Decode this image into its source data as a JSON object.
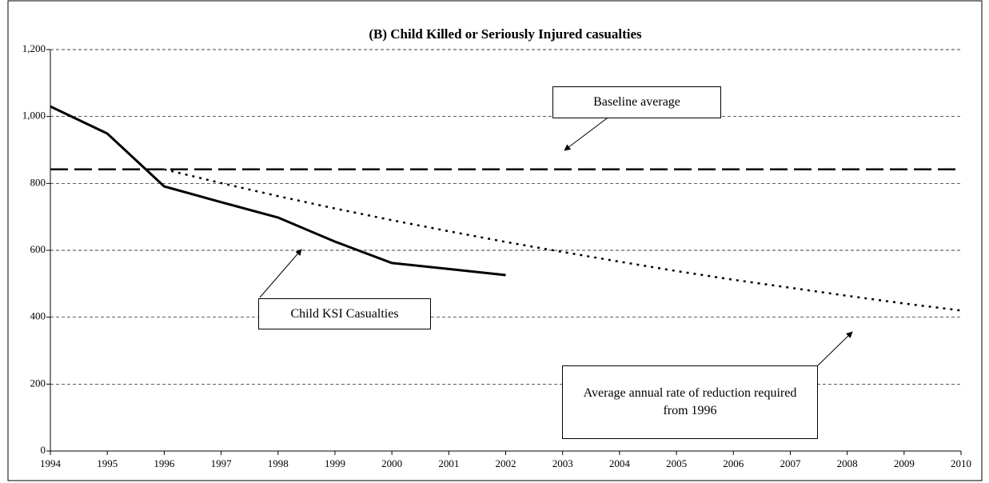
{
  "chart_data": {
    "type": "line",
    "title": "(B) Child Killed or Seriously Injured casualties",
    "x": [
      1994,
      1995,
      1996,
      1997,
      1998,
      1999,
      2000,
      2001,
      2002,
      2003,
      2004,
      2005,
      2006,
      2007,
      2008,
      2009,
      2010
    ],
    "xlim": [
      1994,
      2010
    ],
    "xticks": [
      1994,
      1995,
      1996,
      1997,
      1998,
      1999,
      2000,
      2001,
      2002,
      2003,
      2004,
      2005,
      2006,
      2007,
      2008,
      2009,
      2010
    ],
    "ylim": [
      0,
      1200
    ],
    "yticks": [
      0,
      200,
      400,
      600,
      800,
      {
        "value": 1000,
        "label": "1,000"
      },
      {
        "value": 1200,
        "label": "1,200"
      }
    ],
    "grid": true,
    "series": [
      {
        "name": "Child KSI Casualties",
        "color": "#000000",
        "style": "solid",
        "values": [
          1030,
          949,
          791,
          744,
          698,
          626,
          562,
          544,
          526,
          null,
          null,
          null,
          null,
          null,
          null,
          null,
          null
        ]
      },
      {
        "name": "Baseline average",
        "color": "#000000",
        "style": "dashed",
        "values": [
          842,
          842,
          842,
          842,
          842,
          842,
          842,
          842,
          842,
          842,
          842,
          842,
          842,
          842,
          842,
          842,
          842
        ]
      },
      {
        "name": "Average annual rate of reduction required from 1996",
        "color": "#000000",
        "style": "dotted",
        "values": [
          null,
          null,
          842,
          801,
          762,
          725,
          690,
          657,
          625,
          595,
          566,
          538,
          512,
          488,
          464,
          441,
          420
        ]
      }
    ]
  }
}
